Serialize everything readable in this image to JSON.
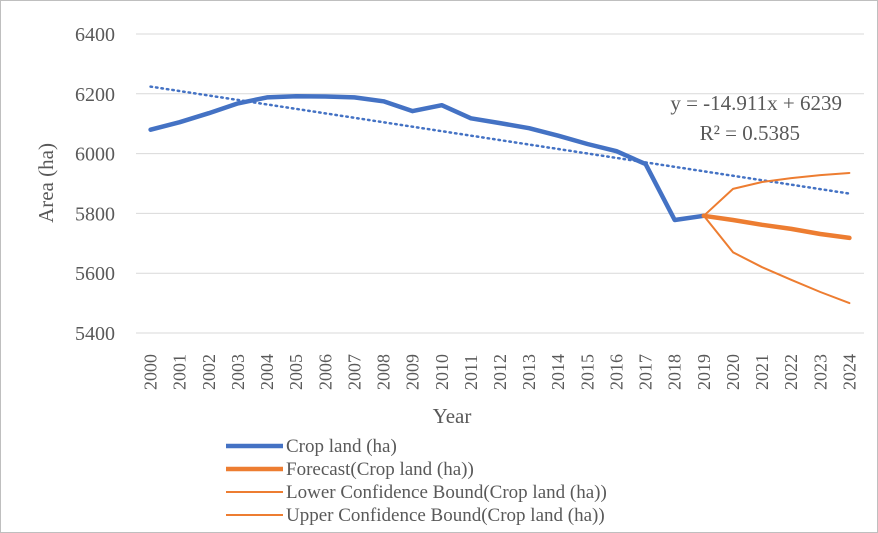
{
  "chart_data": {
    "type": "line",
    "title": "",
    "xlabel": "Year",
    "ylabel": "Area (ha)",
    "ylim": [
      5400,
      6400
    ],
    "yticks": [
      "5400",
      "5600",
      "5800",
      "6000",
      "6200",
      "6400"
    ],
    "grid": true,
    "legend_position": "bottom",
    "categories": [
      "2000",
      "2001",
      "2002",
      "2003",
      "2004",
      "2005",
      "2006",
      "2007",
      "2008",
      "2009",
      "2010",
      "2011",
      "2012",
      "2013",
      "2014",
      "2015",
      "2016",
      "2017",
      "2018",
      "2019",
      "2020",
      "2021",
      "2022",
      "2023",
      "2024"
    ],
    "series": [
      {
        "name": "Crop land (ha)",
        "color": "#4472C4",
        "width": "thick",
        "values": [
          6080,
          6105,
          6135,
          6168,
          6188,
          6192,
          6191,
          6188,
          6175,
          6142,
          6162,
          6118,
          6102,
          6085,
          6060,
          6032,
          6008,
          5965,
          5778,
          5792,
          null,
          null,
          null,
          null,
          null
        ]
      },
      {
        "name": "Forecast(Crop land (ha))",
        "color": "#ED7D31",
        "width": "thick",
        "values": [
          null,
          null,
          null,
          null,
          null,
          null,
          null,
          null,
          null,
          null,
          null,
          null,
          null,
          null,
          null,
          null,
          null,
          null,
          null,
          5792,
          5778,
          5762,
          5748,
          5731,
          5718
        ]
      },
      {
        "name": "Lower Confidence Bound(Crop land (ha))",
        "color": "#ED7D31",
        "width": "thin",
        "values": [
          null,
          null,
          null,
          null,
          null,
          null,
          null,
          null,
          null,
          null,
          null,
          null,
          null,
          null,
          null,
          null,
          null,
          null,
          null,
          5792,
          5670,
          5620,
          5578,
          5537,
          5500
        ]
      },
      {
        "name": "Upper Confidence Bound(Crop land (ha))",
        "color": "#ED7D31",
        "width": "thin",
        "values": [
          null,
          null,
          null,
          null,
          null,
          null,
          null,
          null,
          null,
          null,
          null,
          null,
          null,
          null,
          null,
          null,
          null,
          null,
          null,
          5792,
          5882,
          5905,
          5918,
          5928,
          5935
        ]
      }
    ],
    "trendline": {
      "type": "linear",
      "style": "dotted",
      "color": "#4472C4",
      "slope": -14.911,
      "intercept": 6239,
      "equation_label": "y = -14.911x + 6239",
      "r2_label": "R² = 0.5385"
    }
  }
}
